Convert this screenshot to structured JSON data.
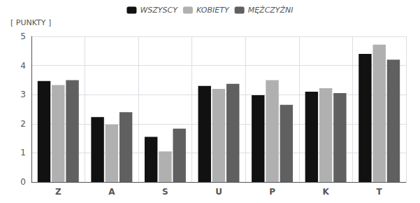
{
  "chart_data": {
    "type": "bar",
    "ylabel": "[ PUNKTY ]",
    "categories": [
      "Z",
      "A",
      "S",
      "U",
      "P",
      "K",
      "T"
    ],
    "series": [
      {
        "name": "WSZYSCY",
        "color": "#111111",
        "values": [
          3.47,
          2.23,
          1.55,
          3.3,
          2.98,
          3.1,
          4.4
        ]
      },
      {
        "name": "KOBIETY",
        "color": "#b0b0b0",
        "values": [
          3.33,
          1.97,
          1.05,
          3.2,
          3.5,
          3.22,
          4.72
        ]
      },
      {
        "name": "MĘŻCZYŹNI",
        "color": "#606060",
        "values": [
          3.5,
          2.4,
          1.83,
          3.37,
          2.65,
          3.05,
          4.2
        ]
      }
    ],
    "ylim": [
      0,
      5
    ],
    "yticks": [
      0,
      1,
      2,
      3,
      4,
      5
    ],
    "grid": true,
    "legend": "top"
  }
}
